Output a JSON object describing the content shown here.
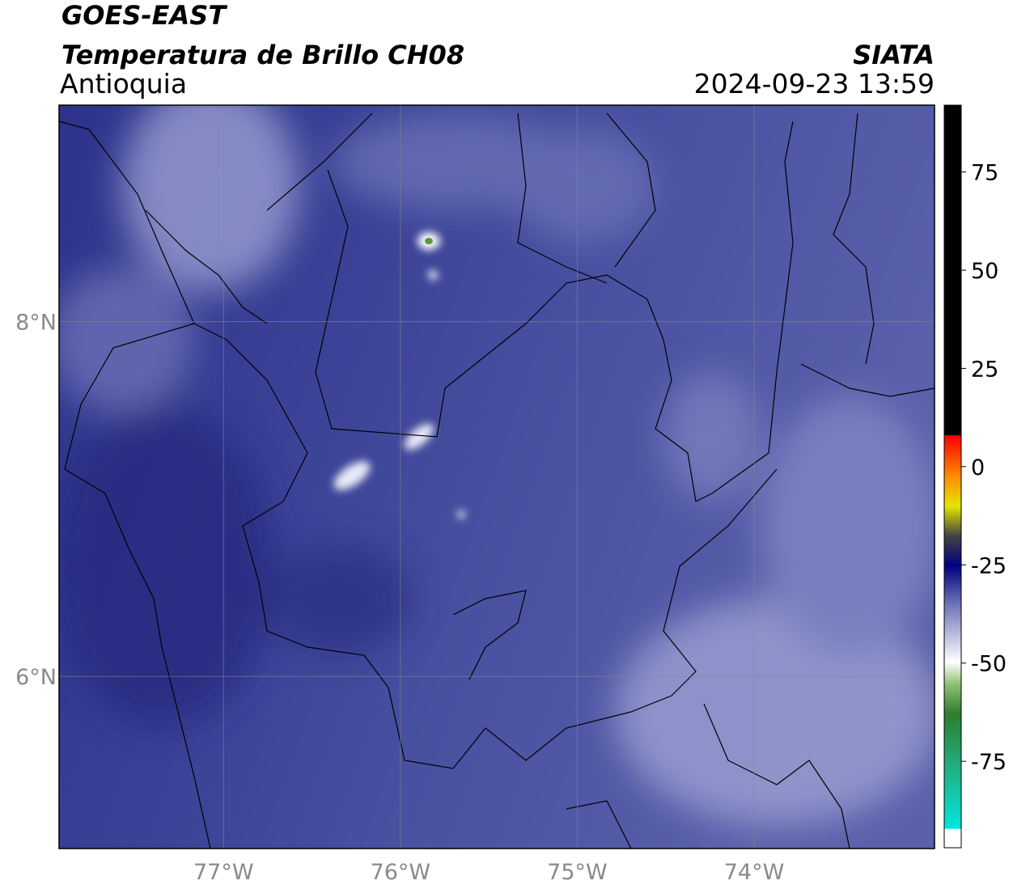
{
  "header": {
    "satellite": "GOES-EAST",
    "product": "Temperatura de Brillo CH08",
    "region": "Antioquia",
    "agency": "SIATA",
    "timestamp": "2024-09-23 13:59"
  },
  "map": {
    "xlim": [
      -77.93,
      -72.98
    ],
    "ylim": [
      5.03,
      9.22
    ],
    "xticks": [
      {
        "value": -77,
        "label": "77°W"
      },
      {
        "value": -76,
        "label": "76°W"
      },
      {
        "value": -75,
        "label": "75°W"
      },
      {
        "value": -74,
        "label": "74°W"
      }
    ],
    "yticks": [
      {
        "value": 8,
        "label": "8°N"
      },
      {
        "value": 6,
        "label": "6°N"
      }
    ]
  },
  "colorbar": {
    "range": [
      -97,
      92
    ],
    "ticks": [
      75,
      50,
      25,
      0,
      -25,
      -50,
      -75
    ]
  }
}
